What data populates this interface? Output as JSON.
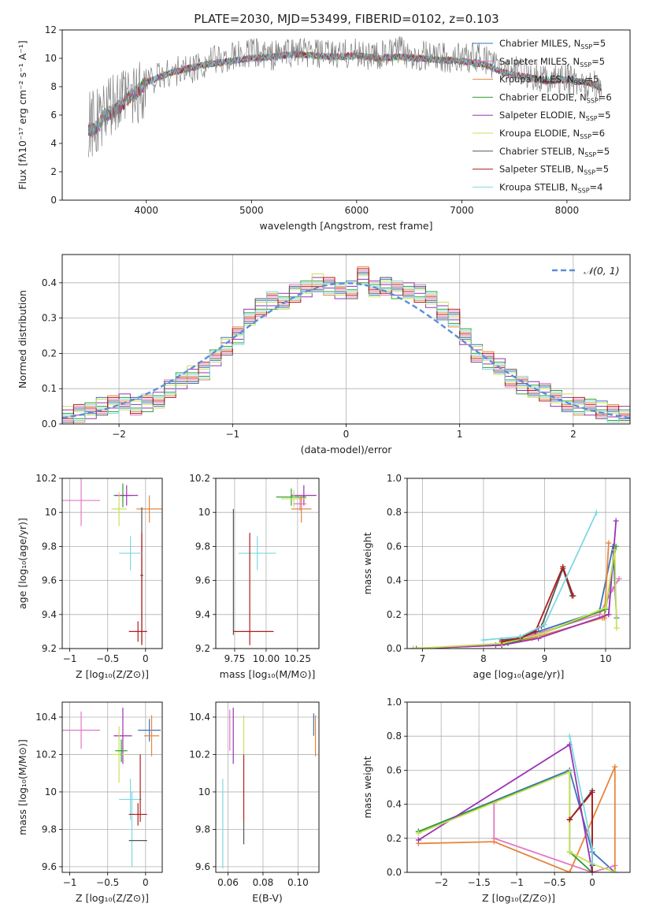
{
  "figure_title": "PLATE=2030, MJD=53499, FIBERID=0102, z=0.103",
  "colors": {
    "chabrier_miles": "#3b73b9",
    "salpeter_miles": "#e377c2",
    "kroupa_miles": "#e6863b",
    "chabrier_elodie": "#2ca02c",
    "salpeter_elodie": "#9b32b4",
    "kroupa_elodie": "#c9e05a",
    "chabrier_stelib": "#555555",
    "salpeter_stelib": "#b01c1c",
    "kroupa_stelib": "#7fd8e0",
    "normal": "#5b8fd6"
  },
  "chart_data": [
    {
      "id": "spectrum",
      "type": "line",
      "xlabel": "wavelength [Angstrom, rest frame]",
      "ylabel": "Flux [fλ10⁻¹⁷ erg cm⁻² s⁻¹ A⁻¹]",
      "xlim": [
        3200,
        8600
      ],
      "ylim": [
        0,
        12
      ],
      "xticks": [
        4000,
        5000,
        6000,
        7000,
        8000
      ],
      "yticks": [
        0,
        2,
        4,
        6,
        8,
        10,
        12
      ],
      "grid": false,
      "legend": "top-right",
      "legend_entries": [
        "Chabrier MILES, N_SSP=5",
        "Salpeter MILES, N_SSP=5",
        "Kroupa MILES, N_SSP=5",
        "Chabrier ELODIE, N_SSP=6",
        "Salpeter ELODIE, N_SSP=5",
        "Kroupa ELODIE, N_SSP=6",
        "Chabrier STELIB, N_SSP=5",
        "Salpeter STELIB, N_SSP=5",
        "Kroupa STELIB, N_SSP=4"
      ],
      "data_series": {
        "x": [
          3450,
          3500,
          3550,
          3600,
          3700,
          3800,
          3900,
          4000,
          4200,
          4400,
          4600,
          4800,
          5000,
          5200,
          5400,
          5600,
          5800,
          6000,
          6200,
          6400,
          6600,
          6800,
          7000,
          7200,
          7400,
          7600,
          7800,
          8000,
          8200,
          8330
        ],
        "y": [
          5.3,
          5.5,
          5.4,
          6.2,
          6.5,
          7.2,
          7.5,
          8.4,
          9.0,
          9.2,
          9.8,
          10.0,
          10.4,
          10.2,
          10.5,
          10.3,
          10.2,
          10.4,
          10.1,
          10.5,
          10.2,
          10.0,
          10.1,
          10.0,
          9.2,
          9.0,
          8.6,
          8.5,
          8.2,
          8.0
        ]
      },
      "model_series": {
        "x": [
          3450,
          3500,
          3550,
          3600,
          3700,
          3800,
          3900,
          4000,
          4200,
          4400,
          4600,
          4800,
          5000,
          5200,
          5400,
          5600,
          5800,
          6000,
          6200,
          6400,
          6600,
          6800,
          7000,
          7200,
          7400,
          7600,
          7800,
          8000,
          8200,
          8330
        ],
        "y": [
          5.0,
          4.9,
          5.3,
          6.0,
          6.3,
          7.0,
          7.6,
          8.3,
          8.9,
          9.3,
          9.6,
          9.8,
          10.0,
          10.1,
          10.3,
          10.2,
          10.1,
          10.2,
          10.0,
          10.1,
          10.0,
          9.9,
          9.8,
          9.6,
          9.0,
          8.7,
          8.4,
          8.5,
          8.3,
          7.9
        ]
      }
    },
    {
      "id": "residuals",
      "type": "histogram",
      "xlabel": "(data-model)/error",
      "ylabel": "Normed distribution",
      "xlim": [
        -2.5,
        2.5
      ],
      "ylim": [
        0,
        0.48
      ],
      "xticks": [
        -2,
        -1,
        0,
        1,
        2
      ],
      "yticks": [
        0.0,
        0.1,
        0.2,
        0.3,
        0.4
      ],
      "grid": true,
      "legend": "top-right",
      "normal_label": "𝒩(0, 1)",
      "bin_edges": [
        -2.5,
        -2.4,
        -2.3,
        -2.2,
        -2.1,
        -2.0,
        -1.9,
        -1.8,
        -1.7,
        -1.6,
        -1.5,
        -1.4,
        -1.3,
        -1.2,
        -1.1,
        -1.0,
        -0.9,
        -0.8,
        -0.7,
        -0.6,
        -0.5,
        -0.4,
        -0.3,
        -0.2,
        -0.1,
        0.0,
        0.1,
        0.2,
        0.3,
        0.4,
        0.5,
        0.6,
        0.7,
        0.8,
        0.9,
        1.0,
        1.1,
        1.2,
        1.3,
        1.4,
        1.5,
        1.6,
        1.7,
        1.8,
        1.9,
        2.0,
        2.1,
        2.2,
        2.3,
        2.4,
        2.5
      ],
      "density": [
        0.025,
        0.03,
        0.04,
        0.05,
        0.055,
        0.06,
        0.05,
        0.06,
        0.07,
        0.1,
        0.12,
        0.14,
        0.15,
        0.19,
        0.22,
        0.25,
        0.3,
        0.33,
        0.35,
        0.35,
        0.37,
        0.38,
        0.4,
        0.39,
        0.38,
        0.38,
        0.42,
        0.38,
        0.39,
        0.38,
        0.38,
        0.37,
        0.35,
        0.32,
        0.3,
        0.25,
        0.2,
        0.18,
        0.16,
        0.13,
        0.11,
        0.1,
        0.09,
        0.07,
        0.06,
        0.05,
        0.05,
        0.04,
        0.03,
        0.025
      ]
    },
    {
      "id": "age_vs_z",
      "type": "errorbar",
      "xlabel": "Z [log₁₀(Z/Z⊙)]",
      "ylabel": "age  [log₁₀(age/yr)]",
      "xlim": [
        -1.1,
        0.22
      ],
      "ylim": [
        9.2,
        10.2
      ],
      "xticks": [
        -1.0,
        -0.5,
        0.0
      ],
      "yticks": [
        9.2,
        9.4,
        9.6,
        9.8,
        10.0,
        10.2
      ],
      "grid": true,
      "points": [
        {
          "c": "salpeter_miles",
          "x": -0.85,
          "y": 10.07,
          "xerr": 0.25,
          "yerr": 0.15
        },
        {
          "c": "kroupa_miles",
          "x": 0.05,
          "y": 10.02,
          "xerr": 0.17,
          "yerr": 0.08
        },
        {
          "c": "chabrier_elodie",
          "x": -0.3,
          "y": 10.1,
          "xerr": 0.12,
          "yerr": 0.07
        },
        {
          "c": "salpeter_elodie",
          "x": -0.25,
          "y": 10.1,
          "xerr": 0.15,
          "yerr": 0.06
        },
        {
          "c": "kroupa_elodie",
          "x": -0.35,
          "y": 10.02,
          "xerr": 0.1,
          "yerr": 0.1
        },
        {
          "c": "chabrier_stelib",
          "x": -0.05,
          "y": 9.63,
          "xerr": 0.02,
          "yerr": 0.4
        },
        {
          "c": "salpeter_stelib",
          "x": -0.1,
          "y": 9.3,
          "xerr": 0.12,
          "yerr": 0.06
        },
        {
          "c": "salpeter_stelib",
          "x": -0.05,
          "y": 9.55,
          "xerr": 0.0,
          "yerr": 0.33
        },
        {
          "c": "kroupa_stelib",
          "x": -0.2,
          "y": 9.76,
          "xerr": 0.15,
          "yerr": 0.1
        }
      ]
    },
    {
      "id": "age_vs_mass",
      "type": "errorbar",
      "xlabel": "mass [log₁₀(M/M⊙)]",
      "ylabel": "",
      "xlim": [
        9.6,
        10.42
      ],
      "ylim": [
        9.2,
        10.2
      ],
      "xticks": [
        9.75,
        10.0,
        10.25
      ],
      "xticklabels": [
        "9.75",
        "10.00",
        "10.25"
      ],
      "yticks": [
        9.2,
        9.4,
        9.6,
        9.8,
        10.0,
        10.2
      ],
      "grid": true,
      "points": [
        {
          "c": "chabrier_elodie",
          "x": 10.2,
          "y": 10.09,
          "xerr": 0.12,
          "yerr": 0.05
        },
        {
          "c": "salpeter_elodie",
          "x": 10.3,
          "y": 10.1,
          "xerr": 0.1,
          "yerr": 0.06
        },
        {
          "c": "kroupa_elodie",
          "x": 10.22,
          "y": 10.08,
          "xerr": 0.1,
          "yerr": 0.05
        },
        {
          "c": "kroupa_miles",
          "x": 10.28,
          "y": 10.02,
          "xerr": 0.08,
          "yerr": 0.08
        },
        {
          "c": "salpeter_miles",
          "x": 10.27,
          "y": 10.05,
          "xerr": 0.05,
          "yerr": 0.04
        },
        {
          "c": "chabrier_stelib",
          "x": 9.74,
          "y": 9.65,
          "xerr": 0.0,
          "yerr": 0.37
        },
        {
          "c": "kroupa_stelib",
          "x": 9.93,
          "y": 9.76,
          "xerr": 0.15,
          "yerr": 0.1
        },
        {
          "c": "salpeter_stelib",
          "x": 9.9,
          "y": 9.3,
          "xerr": 0.16,
          "yerr": 0.0
        },
        {
          "c": "salpeter_stelib",
          "x": 9.87,
          "y": 9.55,
          "xerr": 0.0,
          "yerr": 0.33
        }
      ]
    },
    {
      "id": "weight_vs_age",
      "type": "line",
      "xlabel": "age  [log₁₀(age/yr)]",
      "ylabel": "mass weight",
      "xlim": [
        6.75,
        10.4
      ],
      "ylim": [
        0,
        1
      ],
      "xticks": [
        7,
        8,
        9,
        10
      ],
      "yticks": [
        0.0,
        0.2,
        0.4,
        0.6,
        0.8,
        1.0
      ],
      "grid": true,
      "series": [
        {
          "c": "chabrier_miles",
          "x": [
            6.85,
            8.2,
            8.9,
            9.9,
            10.12,
            10.18
          ],
          "y": [
            0.0,
            0.02,
            0.1,
            0.22,
            0.6,
            0.18
          ]
        },
        {
          "c": "salpeter_miles",
          "x": [
            6.85,
            8.3,
            8.8,
            9.9,
            10.12,
            10.22
          ],
          "y": [
            0.0,
            0.02,
            0.08,
            0.2,
            0.35,
            0.41
          ]
        },
        {
          "c": "kroupa_miles",
          "x": [
            6.85,
            8.3,
            8.8,
            9.95,
            9.98,
            10.05
          ],
          "y": [
            0.0,
            0.02,
            0.06,
            0.18,
            0.18,
            0.62
          ]
        },
        {
          "c": "chabrier_elodie",
          "x": [
            6.9,
            8.4,
            8.9,
            10.0,
            10.17
          ],
          "y": [
            0.0,
            0.03,
            0.08,
            0.23,
            0.6
          ]
        },
        {
          "c": "salpeter_elodie",
          "x": [
            6.85,
            8.3,
            8.9,
            10.05,
            10.17
          ],
          "y": [
            0.0,
            0.02,
            0.06,
            0.2,
            0.75
          ]
        },
        {
          "c": "kroupa_elodie",
          "x": [
            6.85,
            8.3,
            8.9,
            10.0,
            10.15,
            10.18
          ],
          "y": [
            0.0,
            0.03,
            0.08,
            0.24,
            0.58,
            0.12
          ]
        },
        {
          "c": "chabrier_stelib",
          "x": [
            8.3,
            8.6,
            8.95,
            9.3,
            9.45
          ],
          "y": [
            0.05,
            0.06,
            0.13,
            0.47,
            0.31
          ]
        },
        {
          "c": "salpeter_stelib",
          "x": [
            8.3,
            8.6,
            8.85,
            9.3,
            9.47
          ],
          "y": [
            0.04,
            0.06,
            0.1,
            0.48,
            0.31
          ]
        },
        {
          "c": "kroupa_stelib",
          "x": [
            8.0,
            8.6,
            9.0,
            9.85
          ],
          "y": [
            0.05,
            0.07,
            0.14,
            0.8
          ]
        }
      ]
    },
    {
      "id": "mass_vs_z",
      "type": "errorbar",
      "xlabel": "Z [log₁₀(Z/Z⊙)]",
      "ylabel": "mass [log₁₀(M/M⊙)]",
      "xlim": [
        -1.1,
        0.22
      ],
      "ylim": [
        9.57,
        10.48
      ],
      "xticks": [
        -1.0,
        -0.5,
        0.0
      ],
      "yticks": [
        9.6,
        9.8,
        10.0,
        10.2,
        10.4
      ],
      "grid": true,
      "points": [
        {
          "c": "salpeter_miles",
          "x": -0.85,
          "y": 10.33,
          "xerr": 0.25,
          "yerr": 0.1
        },
        {
          "c": "chabrier_miles",
          "x": 0.05,
          "y": 10.33,
          "xerr": 0.15,
          "yerr": 0.06
        },
        {
          "c": "kroupa_miles",
          "x": 0.08,
          "y": 10.3,
          "xerr": 0.1,
          "yerr": 0.11
        },
        {
          "c": "salpeter_elodie",
          "x": -0.3,
          "y": 10.3,
          "xerr": 0.12,
          "yerr": 0.15
        },
        {
          "c": "kroupa_elodie",
          "x": -0.35,
          "y": 10.2,
          "xerr": 0.1,
          "yerr": 0.15
        },
        {
          "c": "chabrier_elodie",
          "x": -0.32,
          "y": 10.22,
          "xerr": 0.08,
          "yerr": 0.06
        },
        {
          "c": "kroupa_stelib",
          "x": -0.2,
          "y": 9.96,
          "xerr": 0.15,
          "yerr": 0.11
        },
        {
          "c": "kroupa_stelib",
          "x": -0.18,
          "y": 9.8,
          "xerr": 0.0,
          "yerr": 0.2
        },
        {
          "c": "salpeter_stelib",
          "x": -0.1,
          "y": 9.88,
          "xerr": 0.12,
          "yerr": 0.06
        },
        {
          "c": "salpeter_stelib",
          "x": -0.07,
          "y": 10.02,
          "xerr": 0.0,
          "yerr": 0.18
        },
        {
          "c": "chabrier_stelib",
          "x": -0.1,
          "y": 9.74,
          "xerr": 0.12,
          "yerr": 0.0
        }
      ]
    },
    {
      "id": "mass_vs_ebv",
      "type": "errorbar",
      "xlabel": "E(B-V)",
      "ylabel": "",
      "xlim": [
        0.053,
        0.112
      ],
      "ylim": [
        9.57,
        10.48
      ],
      "xticks": [
        0.06,
        0.08,
        0.1
      ],
      "xticklabels": [
        "0.06",
        "0.08",
        "0.10"
      ],
      "yticks": [
        9.6,
        9.8,
        10.0,
        10.2,
        10.4
      ],
      "grid": true,
      "points": [
        {
          "c": "kroupa_stelib",
          "x": 0.057,
          "y": 9.83,
          "xerr": 0.0,
          "yerr": 0.24
        },
        {
          "c": "salpeter_miles",
          "x": 0.061,
          "y": 10.33,
          "xerr": 0.0,
          "yerr": 0.11
        },
        {
          "c": "salpeter_elodie",
          "x": 0.063,
          "y": 10.3,
          "xerr": 0.0,
          "yerr": 0.15
        },
        {
          "c": "kroupa_elodie",
          "x": 0.069,
          "y": 10.3,
          "xerr": 0.0,
          "yerr": 0.11
        },
        {
          "c": "chabrier_stelib",
          "x": 0.069,
          "y": 9.78,
          "xerr": 0.0,
          "yerr": 0.06
        },
        {
          "c": "salpeter_stelib",
          "x": 0.069,
          "y": 10.02,
          "xerr": 0.0,
          "yerr": 0.18
        },
        {
          "c": "kroupa_miles",
          "x": 0.11,
          "y": 10.3,
          "xerr": 0.0,
          "yerr": 0.11
        },
        {
          "c": "chabrier_miles",
          "x": 0.109,
          "y": 10.36,
          "xerr": 0.0,
          "yerr": 0.06
        }
      ]
    },
    {
      "id": "weight_vs_z",
      "type": "line",
      "xlabel": "Z [log₁₀(Z/Z⊙)]",
      "ylabel": "mass weight",
      "xlim": [
        -2.45,
        0.5
      ],
      "ylim": [
        0,
        1
      ],
      "xticks": [
        -2.0,
        -1.5,
        -1.0,
        -0.5,
        0.0
      ],
      "yticks": [
        0.0,
        0.2,
        0.4,
        0.6,
        0.8,
        1.0
      ],
      "grid": true,
      "series": [
        {
          "c": "chabrier_miles",
          "x": [
            -2.3,
            -0.3,
            0.0,
            0.3
          ],
          "y": [
            0.24,
            0.6,
            0.12,
            0.0
          ]
        },
        {
          "c": "salpeter_miles",
          "x": [
            -1.3,
            -1.3,
            0.0,
            0.3,
            0.3
          ],
          "y": [
            0.41,
            0.2,
            0.0,
            0.04,
            0.0
          ]
        },
        {
          "c": "kroupa_miles",
          "x": [
            -2.3,
            -1.3,
            -0.3,
            0.3,
            0.3
          ],
          "y": [
            0.17,
            0.18,
            0.0,
            0.62,
            0.0
          ]
        },
        {
          "c": "chabrier_elodie",
          "x": [
            -2.3,
            -0.3,
            -0.3,
            0.0
          ],
          "y": [
            0.24,
            0.59,
            0.12,
            0.0
          ]
        },
        {
          "c": "salpeter_elodie",
          "x": [
            -2.3,
            -0.3,
            0.0
          ],
          "y": [
            0.19,
            0.75,
            0.0
          ]
        },
        {
          "c": "kroupa_elodie",
          "x": [
            -2.3,
            -0.3,
            -0.3,
            0.0,
            0.3
          ],
          "y": [
            0.23,
            0.59,
            0.12,
            0.05,
            0.0
          ]
        },
        {
          "c": "chabrier_stelib",
          "x": [
            -0.3,
            0.0,
            0.0
          ],
          "y": [
            0.31,
            0.48,
            0.04
          ]
        },
        {
          "c": "salpeter_stelib",
          "x": [
            -0.3,
            -0.3,
            0.0,
            0.0
          ],
          "y": [
            0.31,
            0.31,
            0.47,
            0.0
          ]
        },
        {
          "c": "kroupa_stelib",
          "x": [
            -0.3,
            0.0,
            0.0
          ],
          "y": [
            0.8,
            0.14,
            0.05
          ]
        }
      ]
    }
  ]
}
